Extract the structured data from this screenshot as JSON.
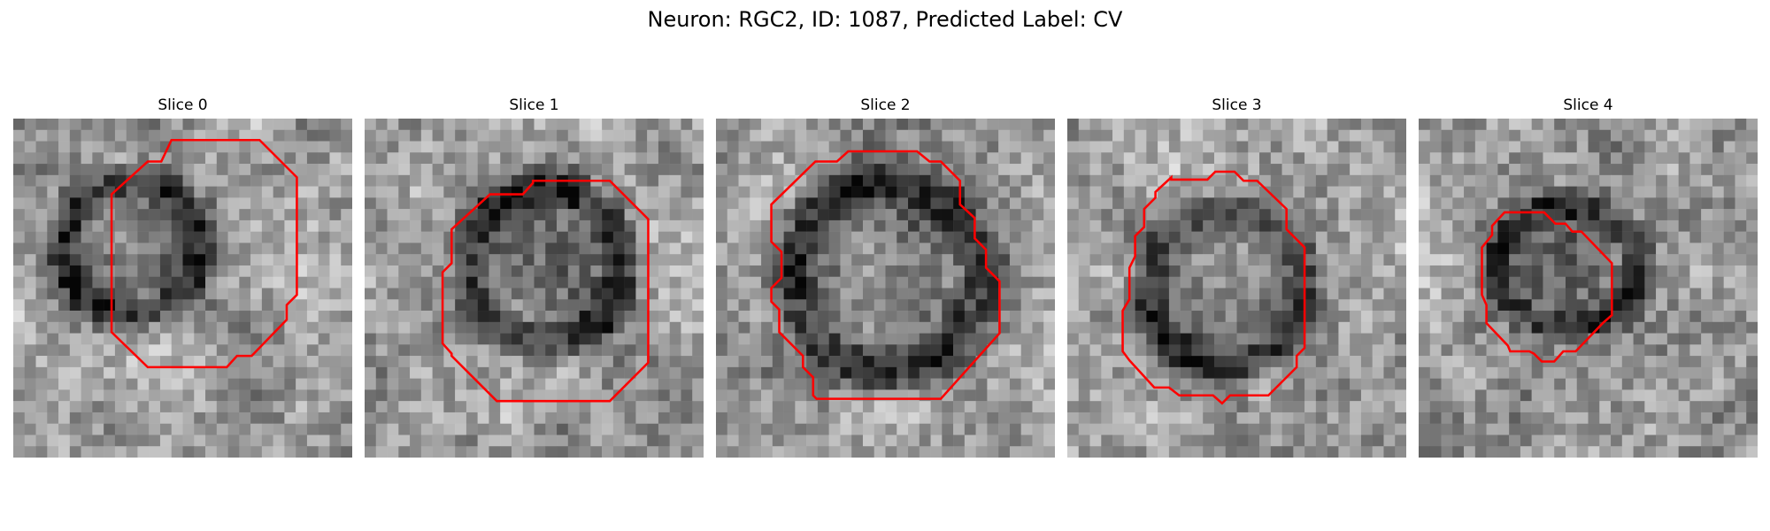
{
  "figure": {
    "title": "Neuron: RGC2, ID: 1087, Predicted Label: CV"
  },
  "slices": [
    {
      "label": "Slice 0"
    },
    {
      "label": "Slice 1"
    },
    {
      "label": "Slice 2"
    },
    {
      "label": "Slice 3"
    },
    {
      "label": "Slice 4"
    }
  ],
  "colors": {
    "contour": "#ff0000"
  }
}
